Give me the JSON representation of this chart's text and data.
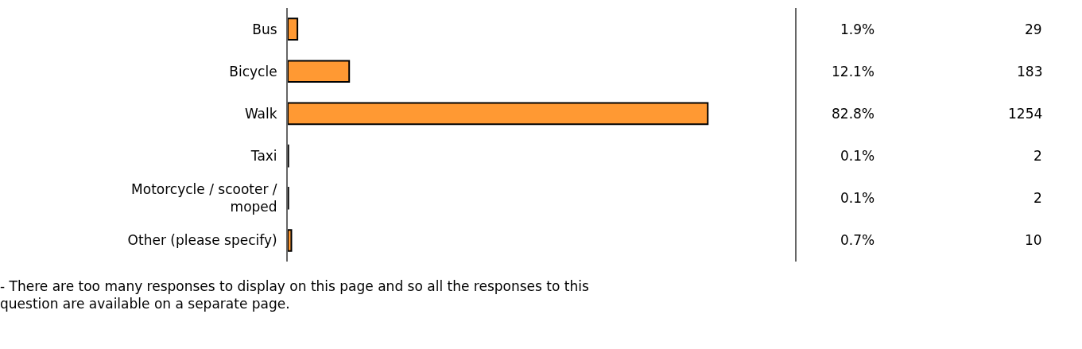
{
  "chart_data": {
    "type": "bar",
    "orientation": "horizontal",
    "categories": [
      "Bus",
      "Bicycle",
      "Walk",
      "Taxi",
      "Motorcycle / scooter / moped",
      "Other (please specify)"
    ],
    "values": [
      1.9,
      12.1,
      82.8,
      0.1,
      0.1,
      0.7
    ],
    "value_labels": [
      "1.9%",
      "12.1%",
      "82.8%",
      "0.1%",
      "0.1%",
      "0.7%"
    ],
    "color": "#ff9933",
    "xlim": [
      0,
      100
    ],
    "tick_labels": "y",
    "annotations": [
      "29",
      "183",
      "1254",
      "2",
      "2",
      "10",
      "- There are too many responses to display on this page and so all the responses to this question are available on a separate page."
    ]
  }
}
